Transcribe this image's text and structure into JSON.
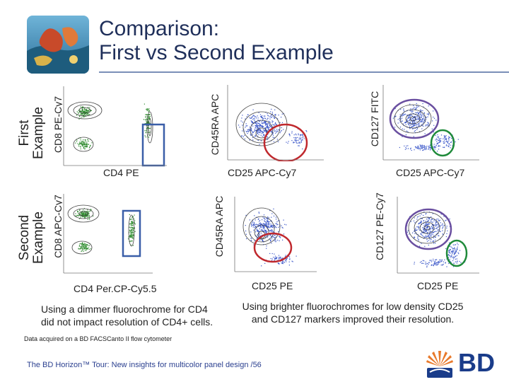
{
  "slide": {
    "title_line1": "Comparison:",
    "title_line2": "First vs Second Example"
  },
  "rows": {
    "first_line1": "First",
    "first_line2": "Example",
    "second_line1": "Second",
    "second_line2": "Example"
  },
  "plots": {
    "r1c1_y": "CD8 PE-Cy7",
    "r1c1_x": "CD4 PE",
    "r1c2_y": "CD45RA APC",
    "r1c2_x": "CD25 APC-Cy7",
    "r1c3_y": "CD127 FITC",
    "r1c3_x": "CD25 APC-Cy7",
    "r2c1_y": "CD8 APC-Cy7",
    "r2c1_x": "CD4 Per.CP-Cy5.5",
    "r2c2_y": "CD45RA APC",
    "r2c2_x": "CD25 PE",
    "r2c3_y": "CD127 PE-Cy7",
    "r2c3_x": "CD25 PE"
  },
  "captions": {
    "left_line1": "Using a dimmer fluorochrome for CD4",
    "left_line2": "did not impact resolution of CD4+ cells.",
    "right_line1": "Using brighter fluorochromes for low density CD25",
    "right_line2": "and CD127 markers improved their resolution."
  },
  "note": "Data acquired on a BD FACSCanto II flow cytometer",
  "footer": {
    "text": "The BD Horizon™ Tour: New insights for multicolor panel design /",
    "page": "56"
  },
  "brand": {
    "name": "BD",
    "color": "#1a3c8a",
    "accent_orange": "#e8792b"
  },
  "colors": {
    "title": "#1f2f5a",
    "green_dots": "#2e8b2e",
    "blue_dots": "#3a56c9",
    "contour": "#444444",
    "gate_blue": "#3a5ea8",
    "gate_red": "#c0282d",
    "gate_purple": "#6a4fa0",
    "gate_green": "#1f8a3a"
  }
}
